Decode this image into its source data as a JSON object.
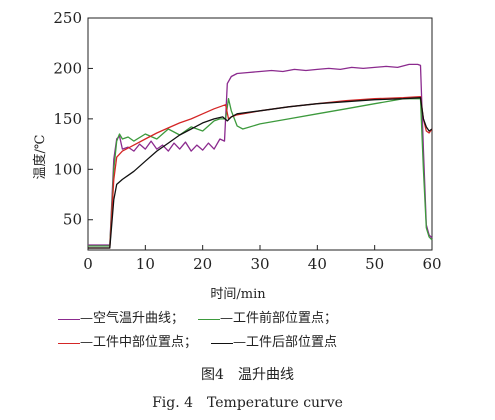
{
  "chart_data": {
    "type": "line",
    "xlabel": "时间/min",
    "ylabel": "温度/℃",
    "xlim": [
      0,
      60
    ],
    "ylim": [
      20,
      250
    ],
    "xticks": [
      0,
      10,
      20,
      30,
      40,
      50,
      60
    ],
    "yticks": [
      50,
      100,
      150,
      200,
      250
    ],
    "grid": false,
    "series": [
      {
        "name": "空气温升曲线",
        "color": "#8b2a8e",
        "x": [
          0,
          3.8,
          4.5,
          5,
          5.5,
          6,
          7,
          8,
          9,
          10,
          11,
          12,
          13,
          14,
          15,
          16,
          17,
          18,
          19,
          20,
          21,
          22,
          23,
          23.8,
          24.3,
          25,
          26,
          28,
          30,
          32,
          34,
          36,
          38,
          40,
          42,
          44,
          46,
          48,
          50,
          52,
          54,
          56,
          57.5,
          58,
          58.5,
          59,
          59.5,
          60
        ],
        "y": [
          25,
          25,
          110,
          130,
          133,
          120,
          122,
          118,
          125,
          120,
          128,
          120,
          124,
          118,
          126,
          120,
          127,
          118,
          124,
          119,
          126,
          120,
          130,
          128,
          185,
          192,
          195,
          196,
          197,
          198,
          197,
          199,
          198,
          199,
          200,
          199,
          201,
          200,
          201,
          202,
          201,
          204,
          204,
          203,
          120,
          45,
          35,
          32
        ]
      },
      {
        "name": "工件前部位置点",
        "color": "#3d9a3d",
        "x": [
          0,
          3.8,
          4.5,
          5,
          5.5,
          6,
          7,
          8,
          10,
          12,
          14,
          16,
          18,
          20,
          22,
          23,
          24,
          24.5,
          25,
          26,
          27,
          30,
          35,
          40,
          45,
          50,
          55,
          58,
          58.5,
          59,
          59.5,
          60
        ],
        "y": [
          24,
          24,
          100,
          128,
          135,
          130,
          132,
          128,
          135,
          130,
          140,
          134,
          142,
          138,
          148,
          150,
          150,
          170,
          158,
          143,
          140,
          145,
          150,
          155,
          160,
          165,
          170,
          170,
          100,
          42,
          33,
          30
        ]
      },
      {
        "name": "工件中部位置点",
        "color": "#d42626",
        "x": [
          0,
          3.8,
          4.5,
          5,
          6,
          8,
          10,
          12,
          14,
          16,
          18,
          20,
          22,
          24,
          24.5,
          25,
          26,
          30,
          35,
          40,
          45,
          50,
          55,
          58,
          58.5,
          59,
          59.5,
          60
        ],
        "y": [
          22,
          22,
          90,
          112,
          118,
          124,
          130,
          136,
          141,
          146,
          150,
          155,
          160,
          164,
          150,
          152,
          154,
          158,
          162,
          165,
          168,
          170,
          171,
          172,
          150,
          138,
          136,
          140
        ]
      },
      {
        "name": "工件后部位置点",
        "color": "#111111",
        "x": [
          0,
          3.8,
          4.5,
          5,
          6,
          8,
          10,
          12,
          14,
          16,
          18,
          20,
          22,
          23.5,
          24.3,
          25,
          26,
          30,
          35,
          40,
          45,
          50,
          55,
          58,
          58.5,
          59,
          59.5,
          60
        ],
        "y": [
          22,
          22,
          70,
          85,
          90,
          98,
          108,
          118,
          126,
          134,
          140,
          146,
          150,
          152,
          148,
          152,
          155,
          158,
          162,
          165,
          167,
          169,
          170,
          171,
          150,
          142,
          138,
          140
        ]
      }
    ],
    "caption_cn": "图4　温升曲线",
    "caption_en": "Fig. 4　Temperature curve"
  },
  "legend_text": {
    "item1": "—空气温升曲线；",
    "item2": "—工件前部位置点；",
    "item3": "—工件中部位置点；",
    "item4": "—工件后部位置点"
  }
}
